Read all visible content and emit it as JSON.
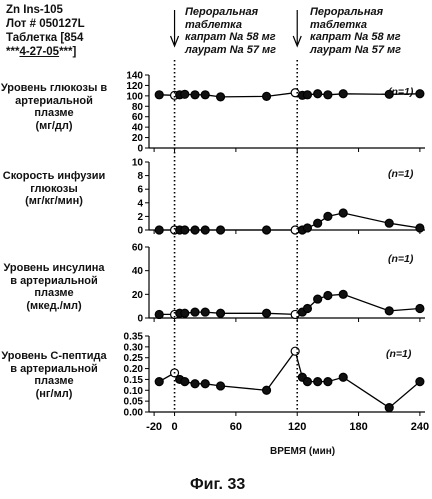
{
  "header": {
    "line1": "Zn Ins-105",
    "line2": "Лот # 050127L",
    "line3": "Таблетка [854",
    "line4_pre": "***",
    "line4_link": "4-27-05",
    "line4_post": "***]"
  },
  "annotations": {
    "left": [
      "Пероральная",
      "таблетка",
      "капрат Na 58 мг",
      "лаурат Na 57 мг"
    ],
    "right": [
      "Пероральная",
      "таблетка",
      "капрат Na 58 мг",
      "лаурат Na 57 мг"
    ]
  },
  "xaxis": {
    "title": "ВРЕМЯ (мин)",
    "ticks": [
      "-20",
      "0",
      "60",
      "120",
      "180",
      "240"
    ]
  },
  "figure_caption": "Фиг. 33",
  "dose_times": [
    0,
    120
  ],
  "chart_data": [
    {
      "type": "line",
      "ylabel": [
        "Уровень глюкозы в",
        "артериальной",
        "плазме",
        "(мг/дл)"
      ],
      "n_label": "(n=1)",
      "ylim": [
        0,
        140
      ],
      "yticks": [
        "0",
        "20",
        "40",
        "60",
        "80",
        "100",
        "120",
        "140"
      ],
      "xlim": [
        -25,
        245
      ],
      "x": [
        -15,
        0,
        5,
        10,
        20,
        30,
        45,
        90,
        118,
        125,
        130,
        140,
        150,
        165,
        210,
        240
      ],
      "y": [
        102,
        101,
        102,
        103,
        102,
        102,
        98,
        99,
        106,
        101,
        102,
        104,
        102,
        104,
        103,
        104
      ],
      "open_points": [
        0,
        118
      ]
    },
    {
      "type": "line",
      "ylabel": [
        "Скорость инфузии",
        "глюкозы",
        "(мг/кг/мин)"
      ],
      "n_label": "(n=1)",
      "ylim": [
        0,
        10
      ],
      "yticks": [
        "0",
        "2",
        "4",
        "6",
        "8",
        "10"
      ],
      "xlim": [
        -25,
        245
      ],
      "x": [
        -15,
        0,
        5,
        10,
        20,
        30,
        45,
        90,
        118,
        125,
        130,
        140,
        150,
        165,
        210,
        240
      ],
      "y": [
        0,
        0,
        0,
        0,
        0,
        0,
        0,
        0,
        0,
        0,
        0.3,
        1.0,
        2.0,
        2.5,
        1.0,
        0.3
      ],
      "open_points": [
        0,
        118
      ]
    },
    {
      "type": "line",
      "ylabel": [
        "Уровень инсулина",
        "в артериальной",
        "плазме",
        "(мкед./мл)"
      ],
      "n_label": "(n=1)",
      "ylim": [
        0,
        60
      ],
      "yticks": [
        "0",
        "20",
        "40",
        "60"
      ],
      "xlim": [
        -25,
        245
      ],
      "x": [
        -15,
        0,
        5,
        10,
        20,
        30,
        45,
        90,
        118,
        125,
        130,
        140,
        150,
        165,
        210,
        240
      ],
      "y": [
        3,
        3,
        4,
        4,
        5,
        5,
        4,
        4,
        3,
        5,
        8,
        16,
        19,
        20,
        6,
        8
      ],
      "open_points": [
        0,
        118
      ]
    },
    {
      "type": "line",
      "ylabel": [
        "Уровень С-пептида",
        "в артериальной",
        "плазме",
        "(нг/мл)"
      ],
      "n_label": "(n=1)",
      "ylim": [
        0,
        0.35
      ],
      "yticks": [
        "0.00",
        "0.05",
        "0.10",
        "0.15",
        "0.20",
        "0.25",
        "0.30",
        "0.35"
      ],
      "xlim": [
        -25,
        245
      ],
      "x": [
        -15,
        0,
        5,
        10,
        20,
        30,
        45,
        90,
        118,
        125,
        130,
        140,
        150,
        165,
        210,
        240
      ],
      "y": [
        0.14,
        0.18,
        0.15,
        0.14,
        0.13,
        0.13,
        0.12,
        0.1,
        0.28,
        0.16,
        0.14,
        0.14,
        0.14,
        0.16,
        0.02,
        0.14
      ],
      "open_points": [
        0,
        118
      ]
    }
  ]
}
